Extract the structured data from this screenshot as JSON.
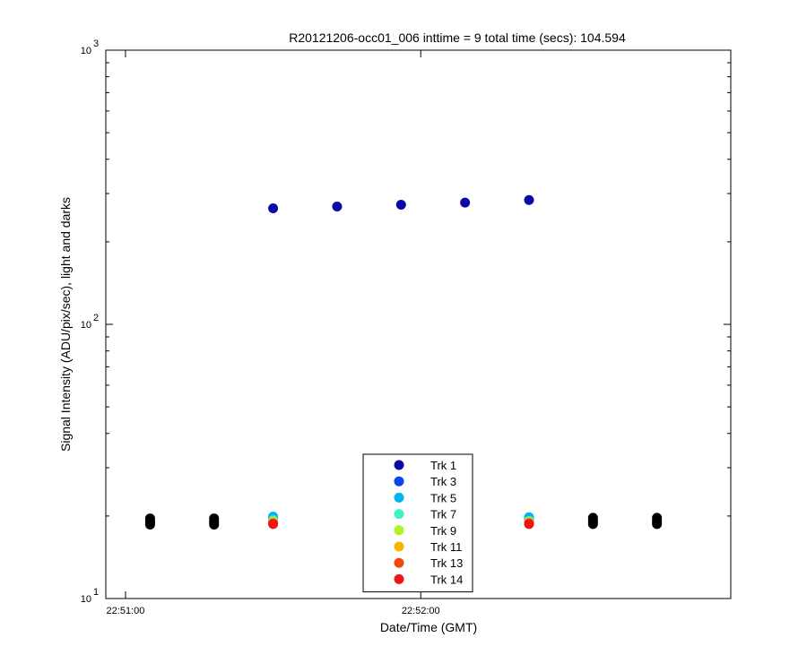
{
  "chart_data": {
    "type": "scatter",
    "title": "R20121206-occ01_006 inttime = 9 total time (secs): 104.594",
    "xlabel": "Date/Time (GMT)",
    "ylabel": "Signal Intensity (ADU/pix/sec), light and darks",
    "yscale": "log",
    "ylim": [
      10,
      1000
    ],
    "xlim": [
      "22:50:56",
      "22:53:03"
    ],
    "x_ticks": [
      "22:51:00",
      "22:52:00"
    ],
    "y_ticks": [
      {
        "base": "10",
        "exp": "1",
        "value": 10
      },
      {
        "base": "10",
        "exp": "2",
        "value": 100
      },
      {
        "base": "10",
        "exp": "3",
        "value": 1000
      }
    ],
    "legend_position": "bottom-center",
    "series": [
      {
        "name": "Trk 1",
        "color": "#0a0aa5",
        "x": [
          "22:51:30",
          "22:51:43",
          "22:51:56",
          "22:52:09",
          "22:52:22"
        ],
        "y": [
          265,
          269,
          273,
          278,
          284
        ]
      },
      {
        "name": "Trk 3",
        "color": "#0a46f0",
        "x": [
          "22:51:30",
          "22:52:09",
          "22:52:22"
        ],
        "y": [
          19.6,
          19.6,
          19.5
        ]
      },
      {
        "name": "Trk 5",
        "color": "#00b4f0",
        "x": [
          "22:51:30",
          "22:52:09",
          "22:52:22"
        ],
        "y": [
          19.9,
          19.9,
          19.8
        ]
      },
      {
        "name": "Trk 7",
        "color": "#40f0c8",
        "x": [
          "22:51:30",
          "22:52:09",
          "22:52:22"
        ],
        "y": [
          19.3,
          19.3,
          19.2
        ]
      },
      {
        "name": "Trk 9",
        "color": "#b4f028",
        "x": [
          "22:51:30",
          "22:52:09",
          "22:52:22"
        ],
        "y": [
          19.1,
          19.1,
          19.0
        ]
      },
      {
        "name": "Trk 11",
        "color": "#fab400",
        "x": [
          "22:51:30",
          "22:52:09",
          "22:52:22"
        ],
        "y": [
          18.9,
          18.9,
          18.9
        ]
      },
      {
        "name": "Trk 13",
        "color": "#f04a0a",
        "x": [
          "22:51:30",
          "22:52:09",
          "22:52:22"
        ],
        "y": [
          18.8,
          18.8,
          18.8
        ]
      },
      {
        "name": "Trk 14",
        "color": "#f01414",
        "x": [
          "22:51:30",
          "22:52:09",
          "22:52:22"
        ],
        "y": [
          18.7,
          18.7,
          18.7
        ]
      }
    ],
    "dark_frames": {
      "color": "#000000",
      "x": [
        "22:51:05",
        "22:51:05",
        "22:51:05",
        "22:51:05",
        "22:51:18",
        "22:51:18",
        "22:51:18",
        "22:51:18",
        "22:52:35",
        "22:52:35",
        "22:52:35",
        "22:52:35",
        "22:52:48",
        "22:52:48",
        "22:52:48",
        "22:52:48"
      ],
      "y": [
        19.6,
        19.2,
        18.9,
        18.6,
        19.6,
        19.2,
        18.9,
        18.6,
        19.7,
        19.3,
        19.0,
        18.7,
        19.7,
        19.3,
        19.0,
        18.7
      ]
    }
  }
}
